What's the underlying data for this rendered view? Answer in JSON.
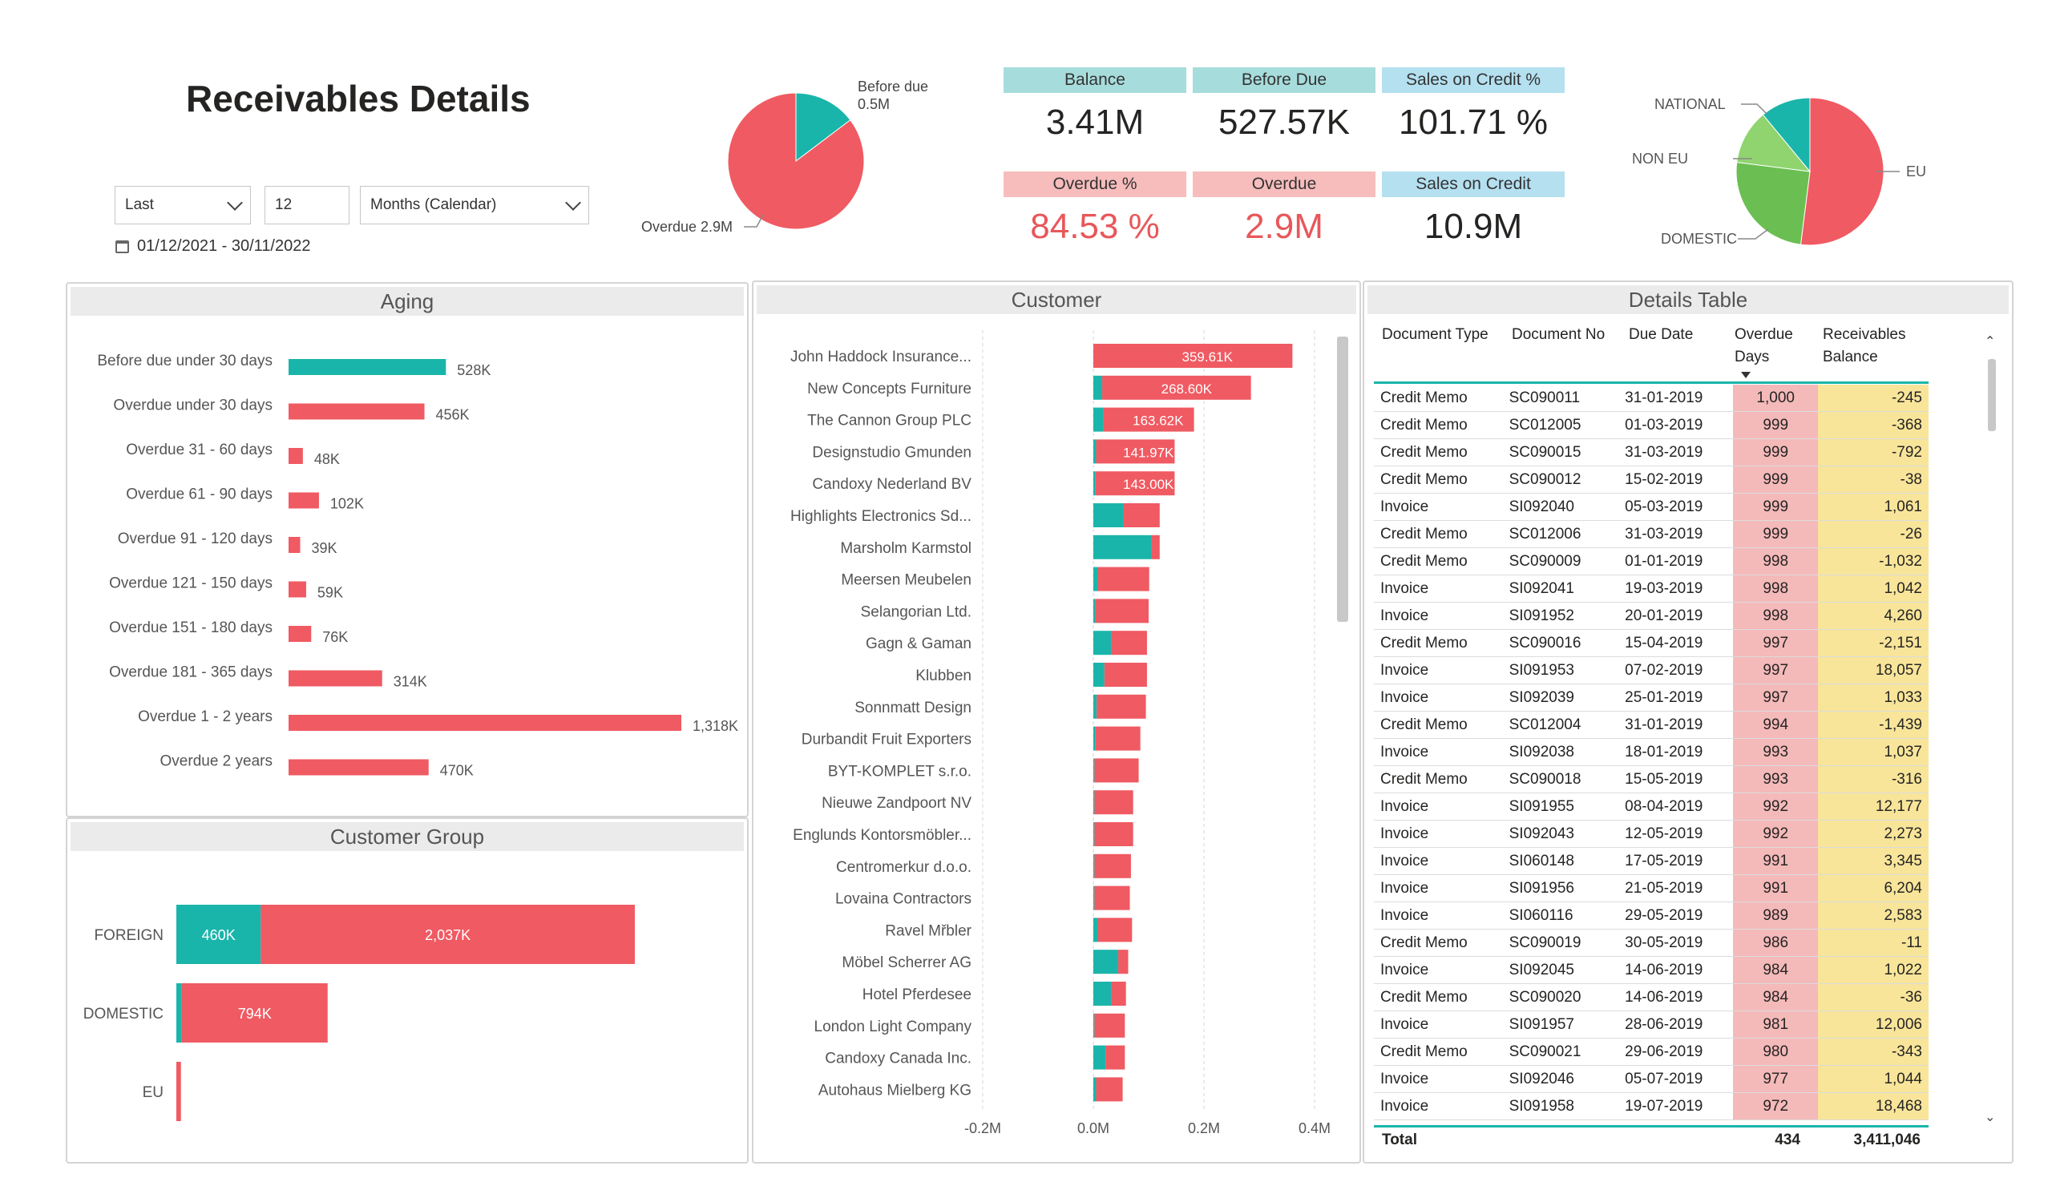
{
  "title": "Receivables Details",
  "filters": {
    "period_type": "Last",
    "period_count": "12",
    "period_unit": "Months (Calendar)",
    "date_range": "01/12/2021 - 30/11/2022",
    "icons": [
      "chevron-down-icon",
      "calendar-icon"
    ]
  },
  "kpis": [
    {
      "label": "Balance",
      "value": "3.41M",
      "header_color": "#a7dcdc",
      "value_color": "#252423"
    },
    {
      "label": "Before Due",
      "value": "527.57K",
      "header_color": "#a7dcdc",
      "value_color": "#252423"
    },
    {
      "label": "Sales on Credit %",
      "value": "101.71 %",
      "header_color": "#b4e0f0",
      "value_color": "#252423"
    },
    {
      "label": "Overdue %",
      "value": "84.53 %",
      "header_color": "#f7bcbc",
      "value_color": "#e8575a"
    },
    {
      "label": "Overdue",
      "value": "2.9M",
      "header_color": "#f7bcbc",
      "value_color": "#e8575a"
    },
    {
      "label": "Sales on Credit",
      "value": "10.9M",
      "header_color": "#b4e0f0",
      "value_color": "#252423"
    }
  ],
  "colors": {
    "teal": "#1ab5aa",
    "red": "#f05a62",
    "green_dark": "#6bbf52",
    "green_light": "#8fd46f"
  },
  "chart_data": [
    {
      "type": "pie",
      "labels": [
        "Before due",
        "Overdue"
      ],
      "values": [
        0.5,
        2.9
      ],
      "label_text": [
        "Before due\n0.5M",
        "Overdue 2.9M"
      ]
    },
    {
      "type": "pie",
      "labels": [
        "EU",
        "DOMESTIC",
        "NON EU",
        "NATIONAL"
      ],
      "values": [
        52,
        25,
        12,
        11
      ]
    },
    {
      "type": "bar",
      "title": "Aging",
      "categories": [
        "Before due under 30 days",
        "Overdue under 30 days",
        "Overdue 31 - 60 days",
        "Overdue 61 - 90 days",
        "Overdue 91 - 120 days",
        "Overdue 121 - 150 days",
        "Overdue 151 - 180 days",
        "Overdue 181 - 365 days",
        "Overdue 1 - 2 years",
        "Overdue 2 years"
      ],
      "values": [
        528,
        456,
        48,
        102,
        39,
        59,
        76,
        314,
        1318,
        470
      ],
      "data_labels": [
        "528K",
        "456K",
        "48K",
        "102K",
        "39K",
        "59K",
        "76K",
        "314K",
        "1,318K",
        "470K"
      ]
    },
    {
      "type": "bar",
      "title": "Customer Group",
      "categories": [
        "FOREIGN",
        "DOMESTIC",
        "EU"
      ],
      "series": [
        {
          "values": [
            460,
            30,
            0
          ],
          "data_labels": [
            "460K",
            "",
            ""
          ]
        },
        {
          "values": [
            2037,
            794,
            25
          ],
          "data_labels": [
            "2,037K",
            "794K",
            ""
          ]
        }
      ]
    },
    {
      "type": "bar",
      "title": "Customer",
      "categories": [
        "John Haddock Insurance...",
        "New Concepts Furniture",
        "The Cannon Group PLC",
        "Designstudio Gmunden",
        "Candoxy Nederland BV",
        "Highlights Electronics Sd...",
        "Marsholm Karmstol",
        "Meersen Meubelen",
        "Selangorian Ltd.",
        "Gagn & Gaman",
        "Klubben",
        "Sonnmatt Design",
        "Durbandit Fruit Exporters",
        "BYT-KOMPLET s.r.o.",
        "Nieuwe Zandpoort NV",
        "Englunds Kontorsmöbler...",
        "Centromerkur d.o.o.",
        "Lovaina Contractors",
        "Ravel Mřbler",
        "Möbel Scherrer AG",
        "Hotel Pferdesee",
        "London Light Company",
        "Candoxy Canada Inc.",
        "Autohaus Mielberg KG"
      ],
      "series": [
        {
          "values": [
            0,
            0.016,
            0.018,
            0.005,
            0.004,
            0.055,
            0.105,
            0.008,
            0.003,
            0.032,
            0.02,
            0.006,
            0.004,
            0.002,
            0.002,
            0.002,
            0.002,
            0.002,
            0.008,
            0.045,
            0.032,
            0.002,
            0.022,
            0.005
          ]
        },
        {
          "values": [
            0.36,
            0.269,
            0.164,
            0.142,
            0.143,
            0.065,
            0.015,
            0.093,
            0.097,
            0.065,
            0.077,
            0.089,
            0.081,
            0.08,
            0.07,
            0.07,
            0.066,
            0.064,
            0.062,
            0.018,
            0.027,
            0.055,
            0.035,
            0.048
          ]
        }
      ],
      "data_labels": [
        "359.61K",
        "268.60K",
        "163.62K",
        "141.97K",
        "143.00K"
      ],
      "xlim": [
        -0.2,
        0.4
      ],
      "x_ticks": [
        "-0.2M",
        "0.0M",
        "0.2M",
        "0.4M"
      ]
    }
  ],
  "details_table": {
    "title": "Details Table",
    "columns": [
      "Document Type",
      "Document No",
      "Due Date",
      "Overdue Days",
      "Receivables Balance"
    ],
    "rows": [
      [
        "Credit Memo",
        "SC090011",
        "31-01-2019",
        "1,000",
        "-245"
      ],
      [
        "Credit Memo",
        "SC012005",
        "01-03-2019",
        "999",
        "-368"
      ],
      [
        "Credit Memo",
        "SC090015",
        "31-03-2019",
        "999",
        "-792"
      ],
      [
        "Credit Memo",
        "SC090012",
        "15-02-2019",
        "999",
        "-38"
      ],
      [
        "Invoice",
        "SI092040",
        "05-03-2019",
        "999",
        "1,061"
      ],
      [
        "Credit Memo",
        "SC012006",
        "31-03-2019",
        "999",
        "-26"
      ],
      [
        "Credit Memo",
        "SC090009",
        "01-01-2019",
        "998",
        "-1,032"
      ],
      [
        "Invoice",
        "SI092041",
        "19-03-2019",
        "998",
        "1,042"
      ],
      [
        "Invoice",
        "SI091952",
        "20-01-2019",
        "998",
        "4,260"
      ],
      [
        "Credit Memo",
        "SC090016",
        "15-04-2019",
        "997",
        "-2,151"
      ],
      [
        "Invoice",
        "SI091953",
        "07-02-2019",
        "997",
        "18,057"
      ],
      [
        "Invoice",
        "SI092039",
        "25-01-2019",
        "997",
        "1,033"
      ],
      [
        "Credit Memo",
        "SC012004",
        "31-01-2019",
        "994",
        "-1,439"
      ],
      [
        "Invoice",
        "SI092038",
        "18-01-2019",
        "993",
        "1,037"
      ],
      [
        "Credit Memo",
        "SC090018",
        "15-05-2019",
        "993",
        "-316"
      ],
      [
        "Invoice",
        "SI091955",
        "08-04-2019",
        "992",
        "12,177"
      ],
      [
        "Invoice",
        "SI092043",
        "12-05-2019",
        "992",
        "2,273"
      ],
      [
        "Invoice",
        "SI060148",
        "17-05-2019",
        "991",
        "3,345"
      ],
      [
        "Invoice",
        "SI091956",
        "21-05-2019",
        "991",
        "6,204"
      ],
      [
        "Invoice",
        "SI060116",
        "29-05-2019",
        "989",
        "2,583"
      ],
      [
        "Credit Memo",
        "SC090019",
        "30-05-2019",
        "986",
        "-11"
      ],
      [
        "Invoice",
        "SI092045",
        "14-06-2019",
        "984",
        "1,022"
      ],
      [
        "Credit Memo",
        "SC090020",
        "14-06-2019",
        "984",
        "-36"
      ],
      [
        "Invoice",
        "SI091957",
        "28-06-2019",
        "981",
        "12,006"
      ],
      [
        "Credit Memo",
        "SC090021",
        "29-06-2019",
        "980",
        "-343"
      ],
      [
        "Invoice",
        "SI092046",
        "05-07-2019",
        "977",
        "1,044"
      ],
      [
        "Invoice",
        "SI091958",
        "19-07-2019",
        "972",
        "18,468"
      ]
    ],
    "total": {
      "label": "Total",
      "overdue_days": "434",
      "balance": "3,411,046"
    }
  }
}
